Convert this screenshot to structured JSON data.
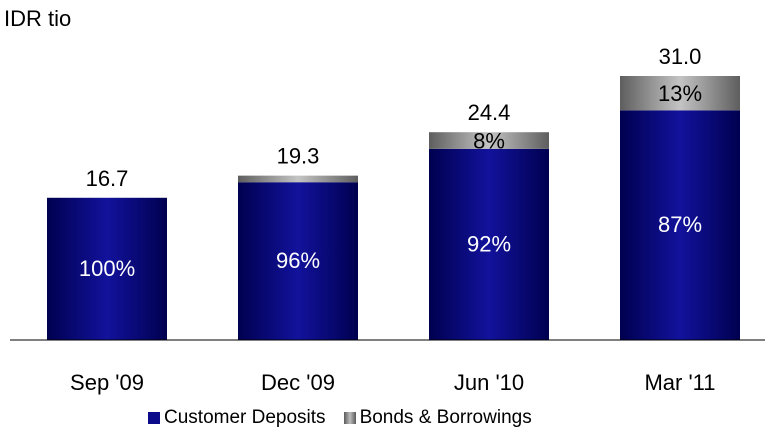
{
  "unit_label": "IDR tio",
  "chart_data": {
    "type": "bar",
    "stacked": true,
    "categories": [
      "Sep '09",
      "Dec '09",
      "Jun '10",
      "Mar '11"
    ],
    "totals": [
      16.7,
      19.3,
      24.4,
      31.0
    ],
    "total_labels": [
      "16.7",
      "19.3",
      "24.4",
      "31.0"
    ],
    "series": [
      {
        "name": "Customer Deposits",
        "shares_pct": [
          100,
          96,
          92,
          87
        ],
        "labels": [
          "100%",
          "96%",
          "92%",
          "87%"
        ],
        "color": "#0a0a8a"
      },
      {
        "name": "Bonds & Borrowings",
        "shares_pct": [
          0,
          4,
          8,
          13
        ],
        "labels": [
          "",
          "",
          "8%",
          "13%"
        ],
        "color": "#8c8c8c"
      }
    ],
    "ylim": [
      0,
      31.0
    ],
    "grid": false,
    "legend_position": "bottom"
  }
}
